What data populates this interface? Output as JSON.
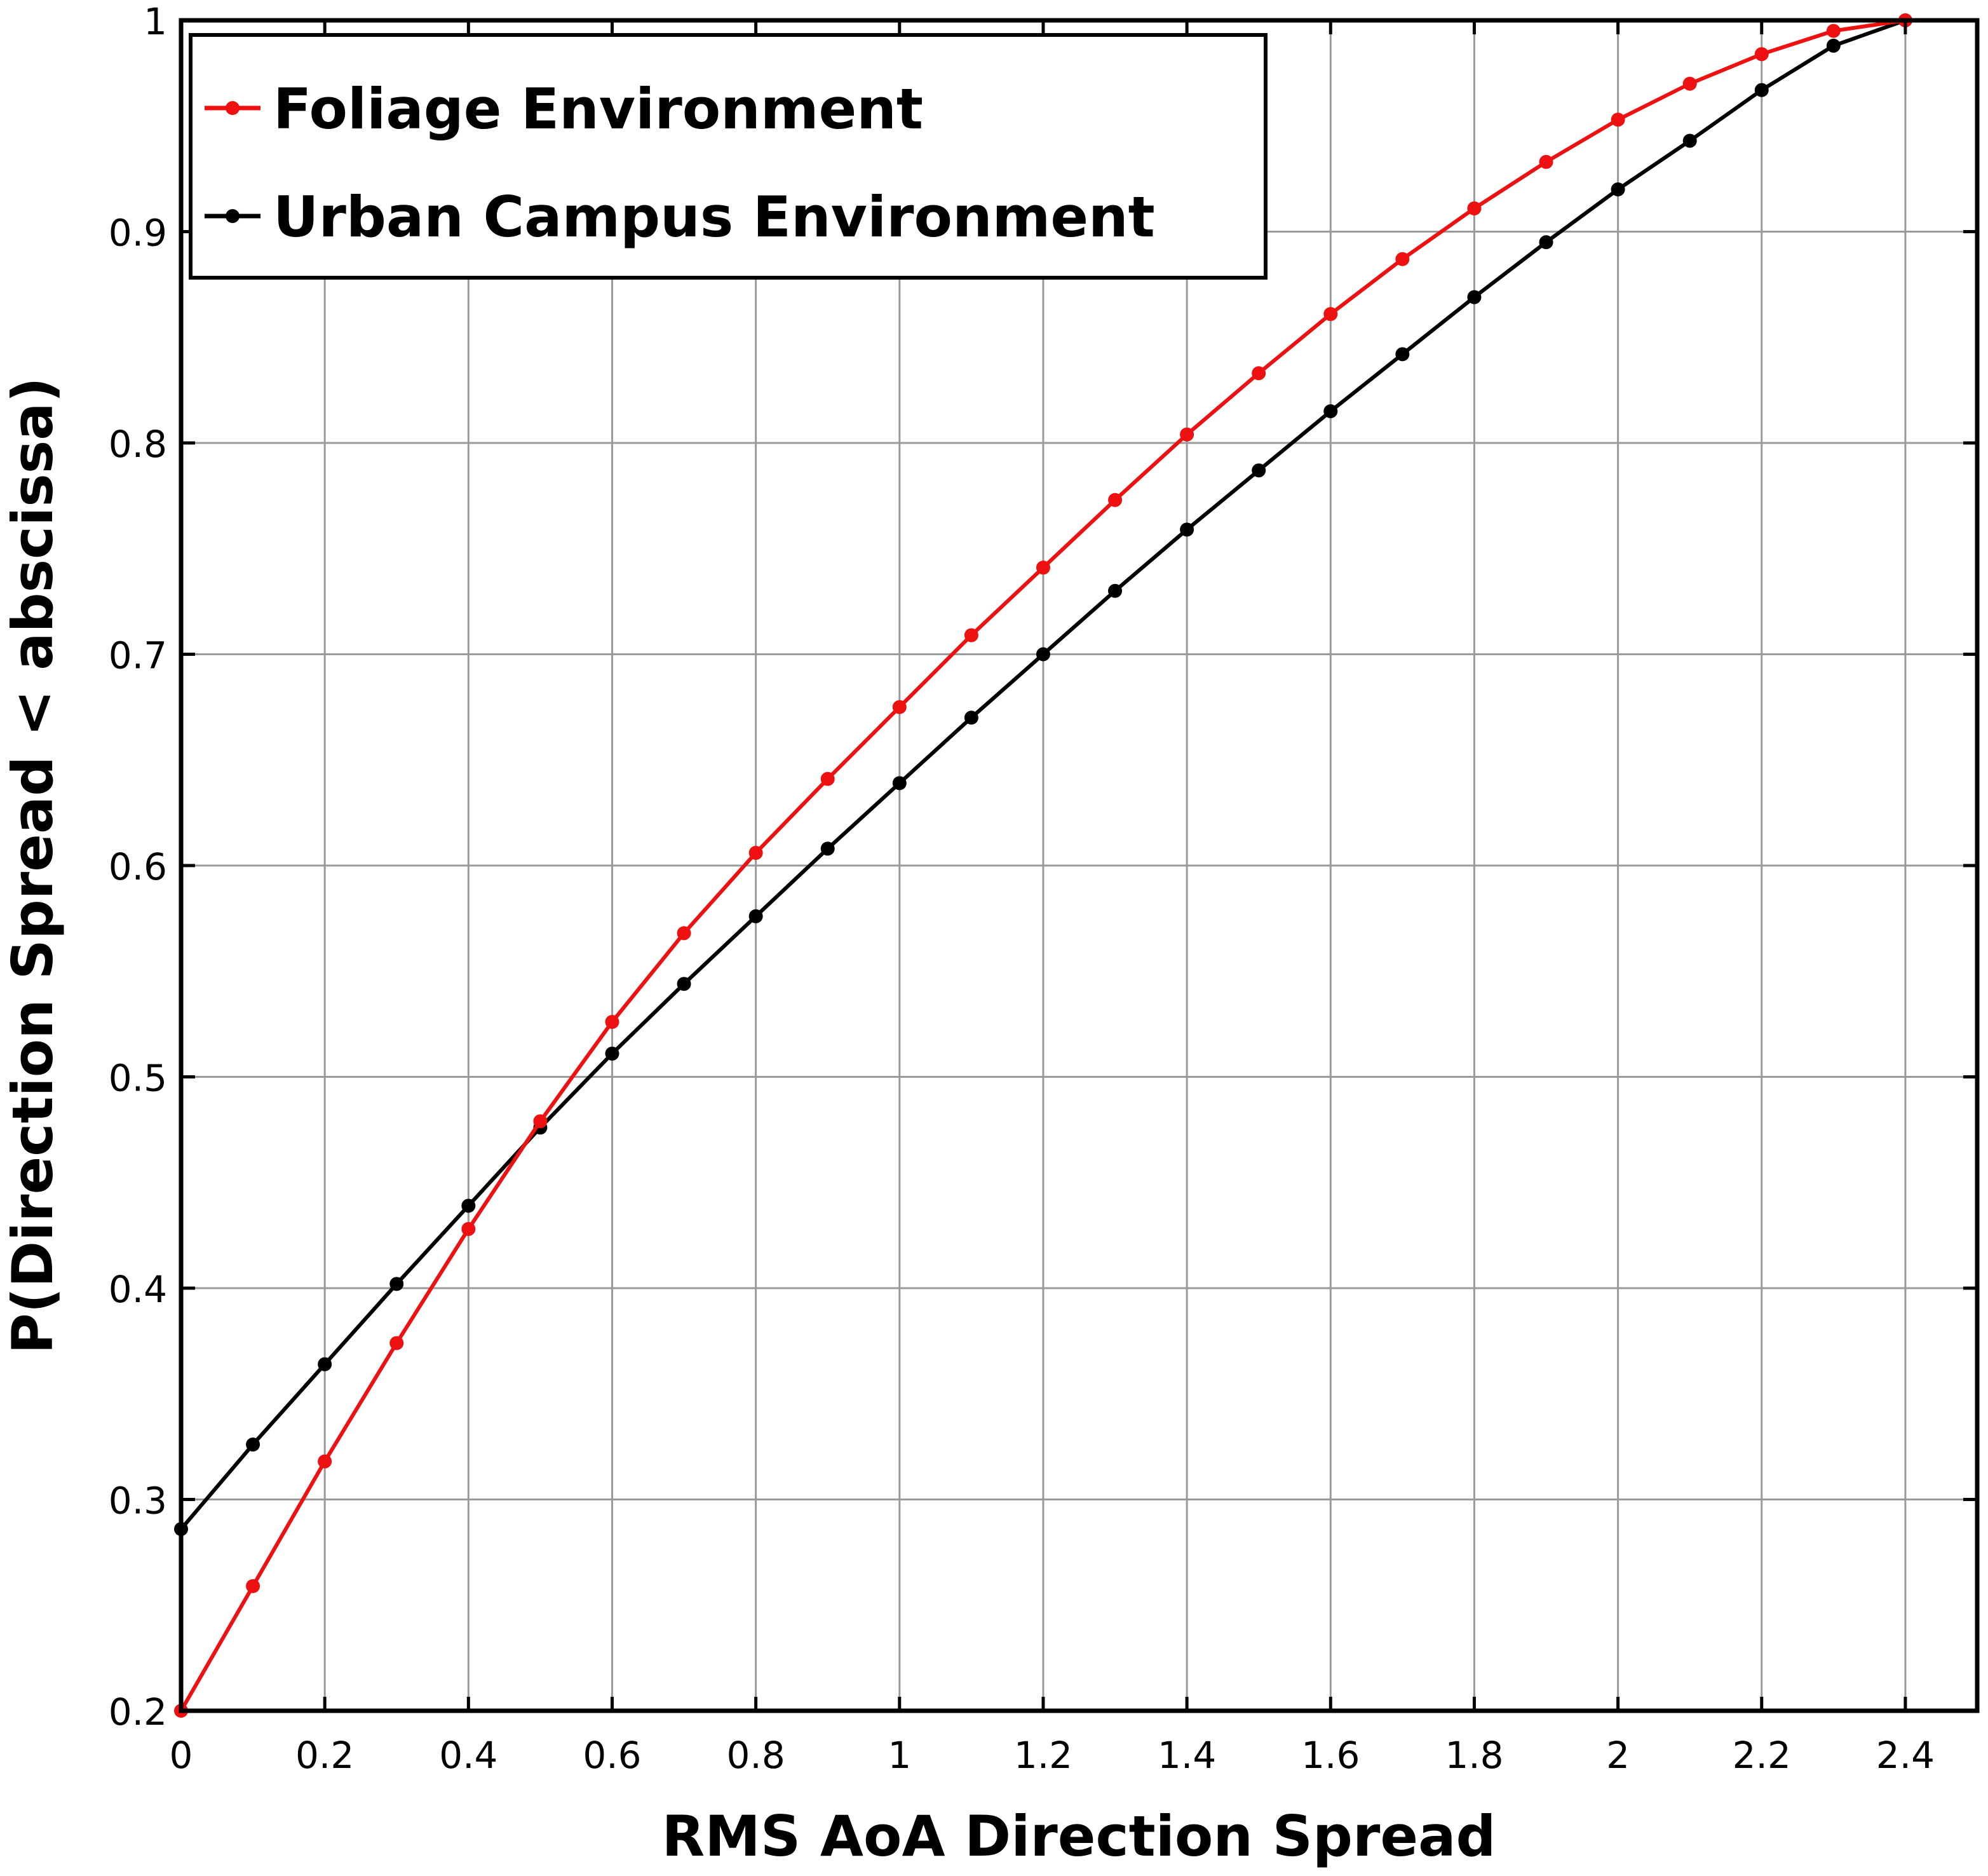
{
  "chart_data": {
    "type": "line",
    "title": "",
    "xlabel": "RMS AoA Direction Spread",
    "ylabel": "P(Direction Spread < abscissa)",
    "xlim": [
      0,
      2.5
    ],
    "ylim": [
      0.2,
      1.0
    ],
    "grid": true,
    "legend_placement": "top-left",
    "x_ticks": [
      0,
      0.2,
      0.4,
      0.6,
      0.8,
      1,
      1.2,
      1.4,
      1.6,
      1.8,
      2,
      2.2,
      2.4
    ],
    "x_tick_labels": [
      "0",
      "0.2",
      "0.4",
      "0.6",
      "0.8",
      "1",
      "1.2",
      "1.4",
      "1.6",
      "1.8",
      "2",
      "2.2",
      "2.4"
    ],
    "y_ticks": [
      0.2,
      0.3,
      0.4,
      0.5,
      0.6,
      0.7,
      0.8,
      0.9,
      1.0
    ],
    "y_tick_labels": [
      "0.2",
      "0.3",
      "0.4",
      "0.5",
      "0.6",
      "0.7",
      "0.8",
      "0.9",
      "1"
    ],
    "x": [
      0,
      0.1,
      0.2,
      0.3,
      0.4,
      0.5,
      0.6,
      0.7,
      0.8,
      0.9,
      1.0,
      1.1,
      1.2,
      1.3,
      1.4,
      1.5,
      1.6,
      1.7,
      1.8,
      1.9,
      2.0,
      2.1,
      2.2,
      2.3,
      2.4
    ],
    "series": [
      {
        "name": "Foliage Environment",
        "color": "#ee1111",
        "values": [
          0.2,
          0.259,
          0.318,
          0.374,
          0.428,
          0.479,
          0.526,
          0.568,
          0.606,
          0.641,
          0.675,
          0.709,
          0.741,
          0.773,
          0.804,
          0.833,
          0.861,
          0.887,
          0.911,
          0.933,
          0.953,
          0.97,
          0.984,
          0.995,
          1.0
        ]
      },
      {
        "name": "Urban Campus Environment",
        "color": "#000000",
        "values": [
          0.286,
          0.326,
          0.364,
          0.402,
          0.439,
          0.476,
          0.511,
          0.544,
          0.576,
          0.608,
          0.639,
          0.67,
          0.7,
          0.73,
          0.759,
          0.787,
          0.815,
          0.842,
          0.869,
          0.895,
          0.92,
          0.943,
          0.967,
          0.988,
          1.0
        ]
      }
    ]
  }
}
